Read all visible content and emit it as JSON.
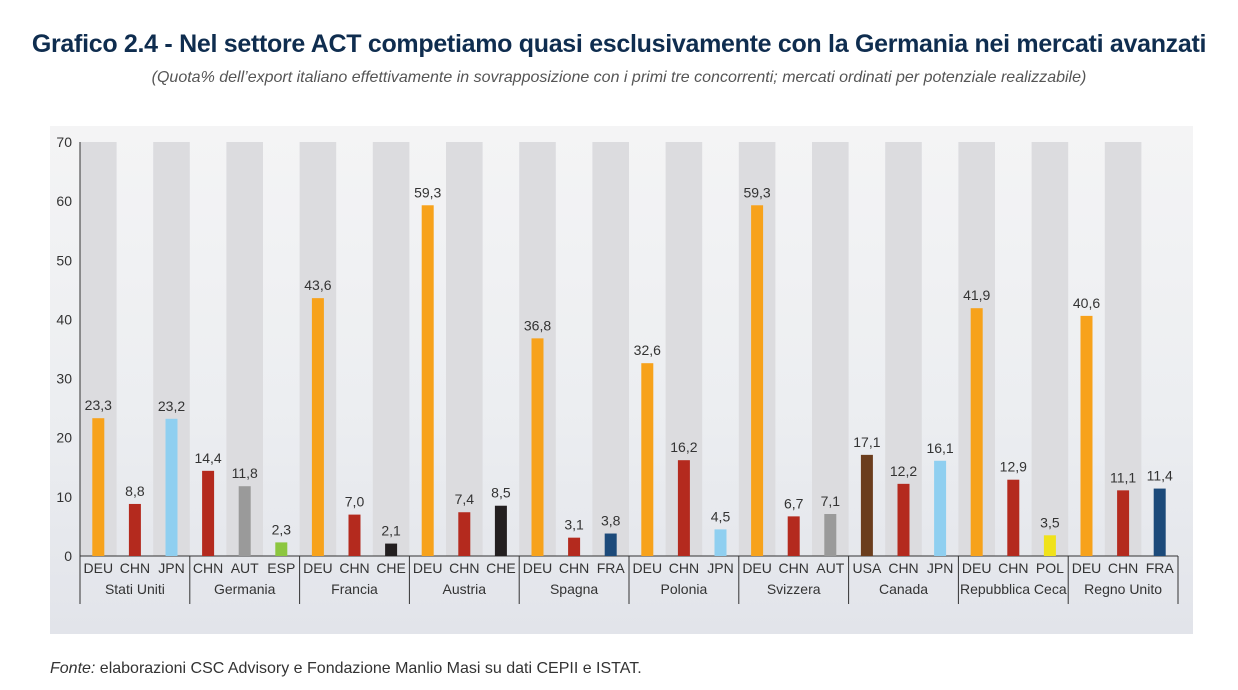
{
  "title": "Grafico 2.4 - Nel settore ACT competiamo quasi esclusivamente con la Germania nei mercati avanzati",
  "subtitle": "(Quota% dell’export italiano effettivamente in sovrapposizione con i primi tre concorrenti; mercati ordinati per potenziale realizzabile)",
  "source": {
    "label": "Fonte:",
    "text": " elaborazioni CSC Advisory e Fondazione Manlio Masi su dati CEPII e ISTAT."
  },
  "colors": {
    "DEU": "#f7a21b",
    "CHN": "#b42a1e",
    "JPN": "#8fcff0",
    "AUT": "#9a9a9a",
    "ESP": "#8cc63f",
    "CHE": "#231f20",
    "FRA": "#1c4a7a",
    "USA": "#6b3d1d",
    "POL": "#f0e21a",
    "stripe": "#dcdcdf"
  },
  "chart_data": {
    "type": "bar",
    "ylim": [
      0,
      70
    ],
    "yticks": [
      "0",
      "10",
      "20",
      "30",
      "40",
      "50",
      "60",
      "70"
    ],
    "groups": [
      {
        "market": "Stati Uniti",
        "bars": [
          {
            "country": "DEU",
            "value": 23.3,
            "label": "23,3"
          },
          {
            "country": "CHN",
            "value": 8.8,
            "label": "8,8"
          },
          {
            "country": "JPN",
            "value": 23.2,
            "label": "23,2"
          }
        ]
      },
      {
        "market": "Germania",
        "bars": [
          {
            "country": "CHN",
            "value": 14.4,
            "label": "14,4"
          },
          {
            "country": "AUT",
            "value": 11.8,
            "label": "11,8"
          },
          {
            "country": "ESP",
            "value": 2.3,
            "label": "2,3"
          }
        ]
      },
      {
        "market": "Francia",
        "bars": [
          {
            "country": "DEU",
            "value": 43.6,
            "label": "43,6"
          },
          {
            "country": "CHN",
            "value": 7.0,
            "label": "7,0"
          },
          {
            "country": "CHE",
            "value": 2.1,
            "label": "2,1"
          }
        ]
      },
      {
        "market": "Austria",
        "bars": [
          {
            "country": "DEU",
            "value": 59.3,
            "label": "59,3"
          },
          {
            "country": "CHN",
            "value": 7.4,
            "label": "7,4"
          },
          {
            "country": "CHE",
            "value": 8.5,
            "label": "8,5"
          }
        ]
      },
      {
        "market": "Spagna",
        "bars": [
          {
            "country": "DEU",
            "value": 36.8,
            "label": "36,8"
          },
          {
            "country": "CHN",
            "value": 3.1,
            "label": "3,1"
          },
          {
            "country": "FRA",
            "value": 3.8,
            "label": "3,8"
          }
        ]
      },
      {
        "market": "Polonia",
        "bars": [
          {
            "country": "DEU",
            "value": 32.6,
            "label": "32,6"
          },
          {
            "country": "CHN",
            "value": 16.2,
            "label": "16,2"
          },
          {
            "country": "JPN",
            "value": 4.5,
            "label": "4,5"
          }
        ]
      },
      {
        "market": "Svizzera",
        "bars": [
          {
            "country": "DEU",
            "value": 59.3,
            "label": "59,3"
          },
          {
            "country": "CHN",
            "value": 6.7,
            "label": "6,7"
          },
          {
            "country": "AUT",
            "value": 7.1,
            "label": "7,1"
          }
        ]
      },
      {
        "market": "Canada",
        "bars": [
          {
            "country": "USA",
            "value": 17.1,
            "label": "17,1"
          },
          {
            "country": "CHN",
            "value": 12.2,
            "label": "12,2"
          },
          {
            "country": "JPN",
            "value": 16.1,
            "label": "16,1"
          }
        ]
      },
      {
        "market": "Repubblica Ceca",
        "bars": [
          {
            "country": "DEU",
            "value": 41.9,
            "label": "41,9"
          },
          {
            "country": "CHN",
            "value": 12.9,
            "label": "12,9"
          },
          {
            "country": "POL",
            "value": 3.5,
            "label": "3,5"
          }
        ]
      },
      {
        "market": "Regno Unito",
        "bars": [
          {
            "country": "DEU",
            "value": 40.6,
            "label": "40,6"
          },
          {
            "country": "CHN",
            "value": 11.1,
            "label": "11,1"
          },
          {
            "country": "FRA",
            "value": 11.4,
            "label": "11,4"
          }
        ]
      }
    ]
  }
}
